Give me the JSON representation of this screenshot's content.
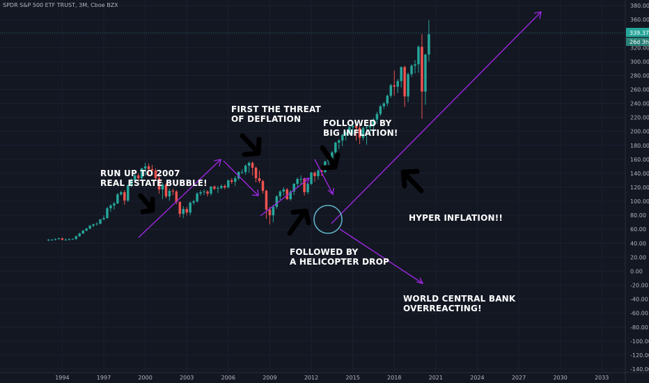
{
  "symbol": "SPDR S&P 500 ETF TRUST, 3M, Cboe BZX",
  "price_tag": {
    "price": "339.37",
    "countdown": "26d 3h",
    "color": "#26a69a"
  },
  "annotations": {
    "run_up": "RUN UP TO 2007\nREAL ESTATE BUBBLE!",
    "deflation": "FIRST THE THREAT\nOF DEFLATION",
    "big_inflation": "FOLLOWED BY\nBIG INFLATION!",
    "helicopter": "FOLLOWED BY\nA HELICOPTER DROP",
    "hyper_inflation": "HYPER INFLATION!!",
    "central_bank": "WORLD CENTRAL BANK\nOVERREACTING!"
  },
  "colors": {
    "up": "#26a69a",
    "down": "#ef5350",
    "arrow_line": "#9c27e0",
    "circle": "#5fb3c9",
    "background": "#131722",
    "grid": "#1c2030"
  },
  "chart_data": {
    "type": "candlestick",
    "title": "SPDR S&P 500 ETF TRUST, 3M, Cboe BZX",
    "xlabel": "",
    "ylabel": "",
    "ylim": [
      -145,
      388
    ],
    "xlim": [
      1989.5,
      2034.7
    ],
    "y_ticks": [
      380,
      360,
      340,
      320,
      300,
      280,
      260,
      240,
      220,
      200,
      180,
      160,
      140,
      120,
      100,
      80,
      60,
      40,
      20,
      0,
      -20,
      -40,
      -60,
      -80,
      -100,
      -120,
      -140
    ],
    "x_ticks": [
      1994,
      1997,
      2000,
      2003,
      2006,
      2009,
      2012,
      2015,
      2018,
      2021,
      2024,
      2027,
      2030,
      2033
    ],
    "last_price": 339.37,
    "x": [
      1993.0,
      1993.25,
      1993.5,
      1993.75,
      1994.0,
      1994.25,
      1994.5,
      1994.75,
      1995.0,
      1995.25,
      1995.5,
      1995.75,
      1996.0,
      1996.25,
      1996.5,
      1996.75,
      1997.0,
      1997.25,
      1997.5,
      1997.75,
      1998.0,
      1998.25,
      1998.5,
      1998.75,
      1999.0,
      1999.25,
      1999.5,
      1999.75,
      2000.0,
      2000.25,
      2000.5,
      2000.75,
      2001.0,
      2001.25,
      2001.5,
      2001.75,
      2002.0,
      2002.25,
      2002.5,
      2002.75,
      2003.0,
      2003.25,
      2003.5,
      2003.75,
      2004.0,
      2004.25,
      2004.5,
      2004.75,
      2005.0,
      2005.25,
      2005.5,
      2005.75,
      2006.0,
      2006.25,
      2006.5,
      2006.75,
      2007.0,
      2007.25,
      2007.5,
      2007.75,
      2008.0,
      2008.25,
      2008.5,
      2008.75,
      2009.0,
      2009.25,
      2009.5,
      2009.75,
      2010.0,
      2010.25,
      2010.5,
      2010.75,
      2011.0,
      2011.25,
      2011.5,
      2011.75,
      2012.0,
      2012.25,
      2012.5,
      2012.75,
      2013.0,
      2013.25,
      2013.5,
      2013.75,
      2014.0,
      2014.25,
      2014.5,
      2014.75,
      2015.0,
      2015.25,
      2015.5,
      2015.75,
      2016.0,
      2016.25,
      2016.5,
      2016.75,
      2017.0,
      2017.25,
      2017.5,
      2017.75,
      2018.0,
      2018.25,
      2018.5,
      2018.75,
      2019.0,
      2019.25,
      2019.5,
      2019.75,
      2020.0,
      2020.25,
      2020.5
    ],
    "open": [
      44,
      45,
      45,
      46,
      47,
      45,
      45,
      46,
      46,
      50,
      54,
      58,
      61,
      65,
      67,
      68,
      74,
      76,
      90,
      94,
      97,
      110,
      113,
      101,
      123,
      130,
      137,
      133,
      147,
      150,
      146,
      144,
      133,
      117,
      124,
      107,
      115,
      114,
      99,
      82,
      89,
      84,
      98,
      100,
      111,
      113,
      114,
      111,
      121,
      118,
      119,
      122,
      120,
      130,
      128,
      133,
      142,
      142,
      151,
      155,
      148,
      133,
      129,
      115,
      88,
      80,
      92,
      107,
      114,
      117,
      103,
      114,
      125,
      132,
      132,
      113,
      125,
      141,
      136,
      144,
      142,
      157,
      161,
      170,
      184,
      187,
      195,
      198,
      206,
      208,
      205,
      191,
      205,
      206,
      208,
      217,
      225,
      236,
      240,
      251,
      266,
      264,
      272,
      292,
      250,
      282,
      294,
      296,
      321,
      257,
      310
    ],
    "close": [
      45,
      45,
      46,
      47,
      45,
      45,
      46,
      46,
      50,
      54,
      58,
      61,
      65,
      67,
      68,
      74,
      76,
      90,
      94,
      97,
      110,
      113,
      101,
      123,
      130,
      137,
      133,
      147,
      150,
      146,
      144,
      133,
      117,
      124,
      107,
      115,
      114,
      99,
      82,
      89,
      84,
      98,
      100,
      111,
      113,
      114,
      111,
      121,
      118,
      119,
      122,
      120,
      130,
      128,
      133,
      142,
      142,
      151,
      155,
      148,
      133,
      129,
      115,
      88,
      80,
      92,
      107,
      114,
      117,
      103,
      114,
      125,
      132,
      132,
      113,
      125,
      141,
      136,
      144,
      142,
      157,
      161,
      170,
      184,
      187,
      195,
      198,
      206,
      208,
      205,
      191,
      205,
      206,
      208,
      217,
      225,
      236,
      240,
      251,
      266,
      264,
      272,
      292,
      250,
      282,
      294,
      296,
      321,
      257,
      310,
      339
    ],
    "high": [
      46,
      46,
      47,
      48,
      48,
      47,
      47,
      47,
      51,
      55,
      59,
      62,
      66,
      68,
      70,
      75,
      80,
      92,
      96,
      99,
      112,
      115,
      116,
      124,
      133,
      139,
      140,
      148,
      155,
      154,
      152,
      147,
      136,
      127,
      126,
      118,
      118,
      116,
      100,
      93,
      92,
      100,
      102,
      113,
      116,
      117,
      116,
      122,
      123,
      122,
      124,
      124,
      131,
      133,
      136,
      143,
      146,
      153,
      157,
      157,
      150,
      144,
      131,
      117,
      92,
      95,
      109,
      116,
      120,
      119,
      116,
      126,
      134,
      137,
      134,
      127,
      142,
      143,
      146,
      146,
      158,
      164,
      172,
      185,
      189,
      197,
      200,
      208,
      212,
      211,
      209,
      207,
      208,
      210,
      219,
      228,
      238,
      242,
      253,
      268,
      287,
      275,
      293,
      294,
      284,
      296,
      302,
      323,
      339,
      311,
      359
    ],
    "low": [
      43,
      44,
      44,
      45,
      44,
      44,
      44,
      45,
      45,
      49,
      53,
      57,
      60,
      63,
      65,
      67,
      73,
      75,
      85,
      88,
      96,
      108,
      95,
      99,
      120,
      127,
      128,
      130,
      137,
      136,
      137,
      129,
      111,
      103,
      104,
      101,
      109,
      96,
      77,
      76,
      80,
      80,
      95,
      98,
      108,
      109,
      107,
      108,
      116,
      112,
      117,
      117,
      118,
      125,
      122,
      130,
      139,
      138,
      141,
      137,
      127,
      126,
      111,
      75,
      67,
      70,
      89,
      102,
      108,
      102,
      101,
      109,
      120,
      124,
      108,
      110,
      123,
      128,
      131,
      136,
      140,
      151,
      158,
      167,
      175,
      179,
      187,
      195,
      196,
      187,
      182,
      187,
      181,
      196,
      199,
      211,
      222,
      232,
      236,
      248,
      251,
      255,
      263,
      235,
      242,
      278,
      283,
      284,
      218,
      238,
      300
    ]
  }
}
